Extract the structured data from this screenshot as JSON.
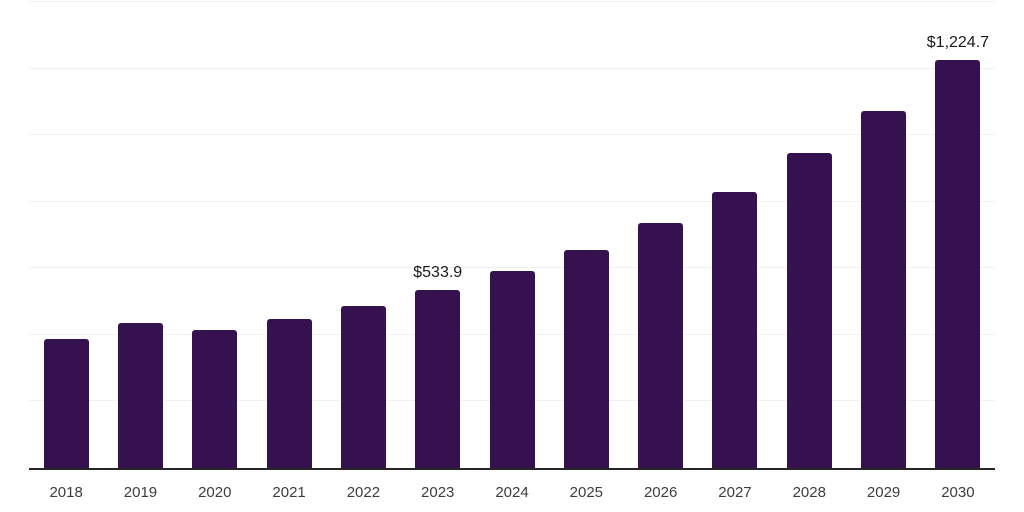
{
  "chart_data": {
    "type": "bar",
    "title": "",
    "xlabel": "",
    "ylabel": "",
    "categories": [
      "2018",
      "2019",
      "2020",
      "2021",
      "2022",
      "2023",
      "2024",
      "2025",
      "2026",
      "2027",
      "2028",
      "2029",
      "2030"
    ],
    "values": [
      388,
      435,
      415,
      447,
      486,
      533.9,
      591,
      656,
      737,
      829,
      946,
      1074,
      1224.7
    ],
    "value_labels": {
      "2023": "$533.9",
      "2030": "$1,224.7"
    },
    "ylim": [
      0,
      1400
    ],
    "grid_step": 200,
    "grid": "horizontal-only",
    "legend": "none",
    "y_tick_labels_visible": false
  },
  "style": {
    "background": "#ffffff",
    "bar_color": "#361150",
    "axis_color": "#262626",
    "gridline_color": "#f0f0f2",
    "value_label_color": "#1a1a1a",
    "tick_label_color": "#3d3d3d"
  }
}
